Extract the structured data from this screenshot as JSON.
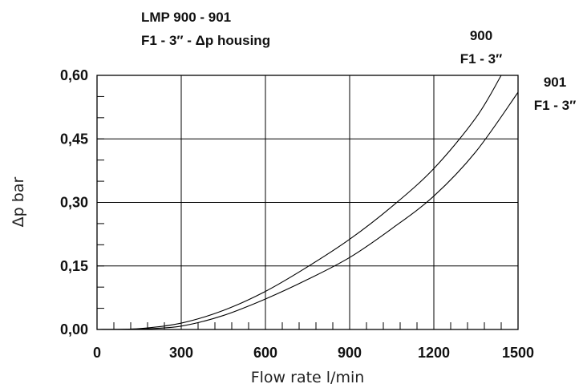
{
  "chart_data": {
    "type": "line",
    "title": "LMP 900 - 901",
    "subtitle": "F1 - 3″ - Δp  housing",
    "xlabel": "Flow rate l/min",
    "ylabel": "Δp bar",
    "xlim": [
      0,
      1500
    ],
    "ylim": [
      0,
      0.6
    ],
    "x_ticks": [
      0,
      300,
      600,
      900,
      1200,
      1500
    ],
    "x_tick_labels": [
      "0",
      "300",
      "600",
      "900",
      "1200",
      "1500"
    ],
    "y_ticks": [
      0,
      0.15,
      0.3,
      0.45,
      0.6
    ],
    "y_tick_labels": [
      "0,00",
      "0,15",
      "0,30",
      "0,45",
      "0,60"
    ],
    "grid": true,
    "series": [
      {
        "name": "900",
        "label_lines": [
          "900",
          "F1 - 3″"
        ],
        "x": [
          0,
          150,
          300,
          450,
          600,
          750,
          900,
          1050,
          1200,
          1350,
          1440
        ],
        "y": [
          0,
          0.002,
          0.015,
          0.045,
          0.09,
          0.148,
          0.213,
          0.29,
          0.38,
          0.5,
          0.6
        ]
      },
      {
        "name": "901",
        "label_lines": [
          "901",
          "F1 - 3″"
        ],
        "x": [
          0,
          150,
          300,
          450,
          600,
          750,
          900,
          1050,
          1200,
          1350,
          1500
        ],
        "y": [
          0,
          0.001,
          0.008,
          0.033,
          0.072,
          0.118,
          0.17,
          0.238,
          0.315,
          0.42,
          0.56
        ]
      }
    ]
  }
}
